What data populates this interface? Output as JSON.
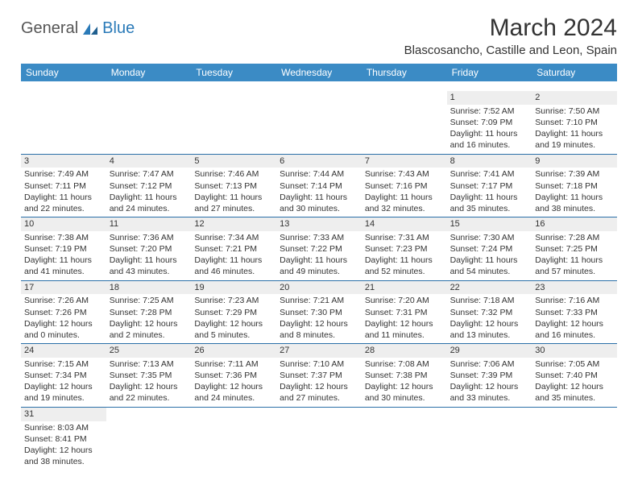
{
  "logo": {
    "general": "General",
    "blue": "Blue"
  },
  "title": "March 2024",
  "location": "Blascosancho, Castille and Leon, Spain",
  "colors": {
    "header_bg": "#3b8bc5",
    "header_text": "#ffffff",
    "date_band_bg": "#eeeeee",
    "week_separator": "#2a6fa8",
    "text": "#333333",
    "logo_gray": "#555555",
    "logo_blue": "#2a7ab8",
    "background": "#ffffff"
  },
  "typography": {
    "title_fontsize": 30,
    "location_fontsize": 15,
    "dayheader_fontsize": 12,
    "cell_fontsize": 10.5
  },
  "day_headers": [
    "Sunday",
    "Monday",
    "Tuesday",
    "Wednesday",
    "Thursday",
    "Friday",
    "Saturday"
  ],
  "weeks": [
    [
      null,
      null,
      null,
      null,
      null,
      {
        "date": "1",
        "sunrise": "Sunrise: 7:52 AM",
        "sunset": "Sunset: 7:09 PM",
        "daylight1": "Daylight: 11 hours",
        "daylight2": "and 16 minutes."
      },
      {
        "date": "2",
        "sunrise": "Sunrise: 7:50 AM",
        "sunset": "Sunset: 7:10 PM",
        "daylight1": "Daylight: 11 hours",
        "daylight2": "and 19 minutes."
      }
    ],
    [
      {
        "date": "3",
        "sunrise": "Sunrise: 7:49 AM",
        "sunset": "Sunset: 7:11 PM",
        "daylight1": "Daylight: 11 hours",
        "daylight2": "and 22 minutes."
      },
      {
        "date": "4",
        "sunrise": "Sunrise: 7:47 AM",
        "sunset": "Sunset: 7:12 PM",
        "daylight1": "Daylight: 11 hours",
        "daylight2": "and 24 minutes."
      },
      {
        "date": "5",
        "sunrise": "Sunrise: 7:46 AM",
        "sunset": "Sunset: 7:13 PM",
        "daylight1": "Daylight: 11 hours",
        "daylight2": "and 27 minutes."
      },
      {
        "date": "6",
        "sunrise": "Sunrise: 7:44 AM",
        "sunset": "Sunset: 7:14 PM",
        "daylight1": "Daylight: 11 hours",
        "daylight2": "and 30 minutes."
      },
      {
        "date": "7",
        "sunrise": "Sunrise: 7:43 AM",
        "sunset": "Sunset: 7:16 PM",
        "daylight1": "Daylight: 11 hours",
        "daylight2": "and 32 minutes."
      },
      {
        "date": "8",
        "sunrise": "Sunrise: 7:41 AM",
        "sunset": "Sunset: 7:17 PM",
        "daylight1": "Daylight: 11 hours",
        "daylight2": "and 35 minutes."
      },
      {
        "date": "9",
        "sunrise": "Sunrise: 7:39 AM",
        "sunset": "Sunset: 7:18 PM",
        "daylight1": "Daylight: 11 hours",
        "daylight2": "and 38 minutes."
      }
    ],
    [
      {
        "date": "10",
        "sunrise": "Sunrise: 7:38 AM",
        "sunset": "Sunset: 7:19 PM",
        "daylight1": "Daylight: 11 hours",
        "daylight2": "and 41 minutes."
      },
      {
        "date": "11",
        "sunrise": "Sunrise: 7:36 AM",
        "sunset": "Sunset: 7:20 PM",
        "daylight1": "Daylight: 11 hours",
        "daylight2": "and 43 minutes."
      },
      {
        "date": "12",
        "sunrise": "Sunrise: 7:34 AM",
        "sunset": "Sunset: 7:21 PM",
        "daylight1": "Daylight: 11 hours",
        "daylight2": "and 46 minutes."
      },
      {
        "date": "13",
        "sunrise": "Sunrise: 7:33 AM",
        "sunset": "Sunset: 7:22 PM",
        "daylight1": "Daylight: 11 hours",
        "daylight2": "and 49 minutes."
      },
      {
        "date": "14",
        "sunrise": "Sunrise: 7:31 AM",
        "sunset": "Sunset: 7:23 PM",
        "daylight1": "Daylight: 11 hours",
        "daylight2": "and 52 minutes."
      },
      {
        "date": "15",
        "sunrise": "Sunrise: 7:30 AM",
        "sunset": "Sunset: 7:24 PM",
        "daylight1": "Daylight: 11 hours",
        "daylight2": "and 54 minutes."
      },
      {
        "date": "16",
        "sunrise": "Sunrise: 7:28 AM",
        "sunset": "Sunset: 7:25 PM",
        "daylight1": "Daylight: 11 hours",
        "daylight2": "and 57 minutes."
      }
    ],
    [
      {
        "date": "17",
        "sunrise": "Sunrise: 7:26 AM",
        "sunset": "Sunset: 7:26 PM",
        "daylight1": "Daylight: 12 hours",
        "daylight2": "and 0 minutes."
      },
      {
        "date": "18",
        "sunrise": "Sunrise: 7:25 AM",
        "sunset": "Sunset: 7:28 PM",
        "daylight1": "Daylight: 12 hours",
        "daylight2": "and 2 minutes."
      },
      {
        "date": "19",
        "sunrise": "Sunrise: 7:23 AM",
        "sunset": "Sunset: 7:29 PM",
        "daylight1": "Daylight: 12 hours",
        "daylight2": "and 5 minutes."
      },
      {
        "date": "20",
        "sunrise": "Sunrise: 7:21 AM",
        "sunset": "Sunset: 7:30 PM",
        "daylight1": "Daylight: 12 hours",
        "daylight2": "and 8 minutes."
      },
      {
        "date": "21",
        "sunrise": "Sunrise: 7:20 AM",
        "sunset": "Sunset: 7:31 PM",
        "daylight1": "Daylight: 12 hours",
        "daylight2": "and 11 minutes."
      },
      {
        "date": "22",
        "sunrise": "Sunrise: 7:18 AM",
        "sunset": "Sunset: 7:32 PM",
        "daylight1": "Daylight: 12 hours",
        "daylight2": "and 13 minutes."
      },
      {
        "date": "23",
        "sunrise": "Sunrise: 7:16 AM",
        "sunset": "Sunset: 7:33 PM",
        "daylight1": "Daylight: 12 hours",
        "daylight2": "and 16 minutes."
      }
    ],
    [
      {
        "date": "24",
        "sunrise": "Sunrise: 7:15 AM",
        "sunset": "Sunset: 7:34 PM",
        "daylight1": "Daylight: 12 hours",
        "daylight2": "and 19 minutes."
      },
      {
        "date": "25",
        "sunrise": "Sunrise: 7:13 AM",
        "sunset": "Sunset: 7:35 PM",
        "daylight1": "Daylight: 12 hours",
        "daylight2": "and 22 minutes."
      },
      {
        "date": "26",
        "sunrise": "Sunrise: 7:11 AM",
        "sunset": "Sunset: 7:36 PM",
        "daylight1": "Daylight: 12 hours",
        "daylight2": "and 24 minutes."
      },
      {
        "date": "27",
        "sunrise": "Sunrise: 7:10 AM",
        "sunset": "Sunset: 7:37 PM",
        "daylight1": "Daylight: 12 hours",
        "daylight2": "and 27 minutes."
      },
      {
        "date": "28",
        "sunrise": "Sunrise: 7:08 AM",
        "sunset": "Sunset: 7:38 PM",
        "daylight1": "Daylight: 12 hours",
        "daylight2": "and 30 minutes."
      },
      {
        "date": "29",
        "sunrise": "Sunrise: 7:06 AM",
        "sunset": "Sunset: 7:39 PM",
        "daylight1": "Daylight: 12 hours",
        "daylight2": "and 33 minutes."
      },
      {
        "date": "30",
        "sunrise": "Sunrise: 7:05 AM",
        "sunset": "Sunset: 7:40 PM",
        "daylight1": "Daylight: 12 hours",
        "daylight2": "and 35 minutes."
      }
    ],
    [
      {
        "date": "31",
        "sunrise": "Sunrise: 8:03 AM",
        "sunset": "Sunset: 8:41 PM",
        "daylight1": "Daylight: 12 hours",
        "daylight2": "and 38 minutes."
      },
      null,
      null,
      null,
      null,
      null,
      null
    ]
  ]
}
